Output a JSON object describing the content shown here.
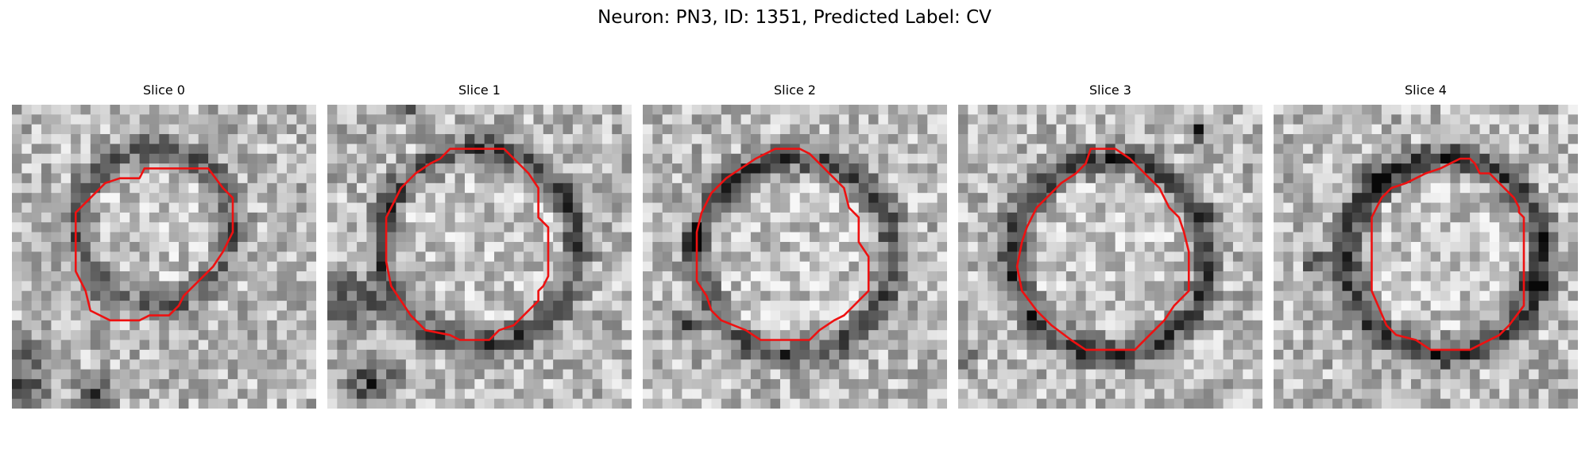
{
  "figure": {
    "title": "Neuron: PN3, ID: 1351, Predicted Label: CV"
  },
  "panels": [
    {
      "title": "Slice 0"
    },
    {
      "title": "Slice 1"
    },
    {
      "title": "Slice 2"
    },
    {
      "title": "Slice 3"
    },
    {
      "title": "Slice 4"
    }
  ],
  "colors": {
    "contour": "#ee1111",
    "background": "#ffffff"
  }
}
